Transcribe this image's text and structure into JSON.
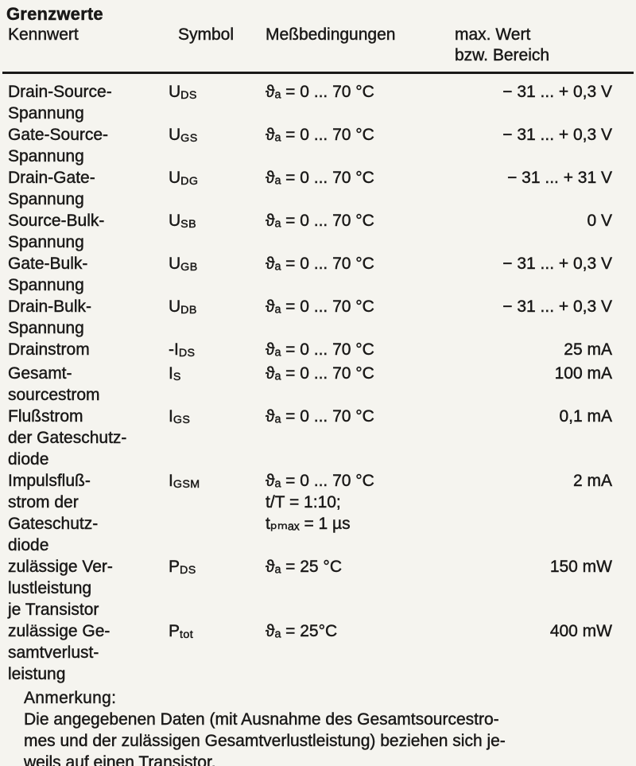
{
  "page": {
    "title": "Grenzwerte",
    "colors": {
      "paper": "#f5f4ef",
      "ink": "#1a1918"
    }
  },
  "table": {
    "headers": {
      "kennwert": "Kennwert",
      "symbol": "Symbol",
      "conditions": "Meßbedingungen",
      "max_value": "max. Wert\nbzw. Bereich"
    },
    "rows": [
      {
        "name": "Drain-Source-\nSpannung",
        "symbol_base": "U",
        "symbol_sub": "DS",
        "conditions": "ϑₐ = 0 ... 70 °C",
        "value": "− 31 ... + 0,3 V"
      },
      {
        "name": "Gate-Source-\nSpannung",
        "symbol_base": "U",
        "symbol_sub": "GS",
        "conditions": "ϑₐ = 0 ... 70 °C",
        "value": "− 31 ... + 0,3 V"
      },
      {
        "name": "Drain-Gate-\nSpannung",
        "symbol_base": "U",
        "symbol_sub": "DG",
        "conditions": "ϑₐ = 0 ... 70 °C",
        "value": "− 31 ... + 31 V"
      },
      {
        "name": "Source-Bulk-\nSpannung",
        "symbol_base": "U",
        "symbol_sub": "SB",
        "conditions": "ϑₐ = 0 ... 70 °C",
        "value": "0 V"
      },
      {
        "name": "Gate-Bulk-\nSpannung",
        "symbol_base": "U",
        "symbol_sub": "GB",
        "conditions": "ϑₐ = 0 ... 70 °C",
        "value": "− 31 ... + 0,3 V"
      },
      {
        "name": "Drain-Bulk-\nSpannung",
        "symbol_base": "U",
        "symbol_sub": "DB",
        "conditions": "ϑₐ = 0 ... 70 °C",
        "value": "− 31 ... + 0,3 V"
      },
      {
        "name": "Drainstrom",
        "symbol_base": "-I",
        "symbol_sub": "DS",
        "conditions": "ϑₐ = 0 ... 70 °C",
        "value": "25 mA"
      },
      {
        "name": "Gesamt-\nsourcestrom",
        "symbol_base": "I",
        "symbol_sub": "S",
        "conditions": "ϑₐ = 0 ... 70 °C",
        "value": "100 mA"
      },
      {
        "name": "Flußstrom\nder Gateschutz-\ndiode",
        "symbol_base": "I",
        "symbol_sub": "GS",
        "conditions": "ϑₐ = 0 ... 70 °C",
        "value": "0,1 mA"
      },
      {
        "name": "Impulsfluß-\nstrom der\nGateschutz-\ndiode",
        "symbol_base": "I",
        "symbol_sub": "GSM",
        "conditions": "ϑₐ = 0 ... 70 °C\nt/T = 1:10;\ntₚₘₐₓ = 1 µs",
        "value": "2 mA"
      },
      {
        "name": "zulässige Ver-\nlustleistung\nje Transistor",
        "symbol_base": "P",
        "symbol_sub": "DS",
        "conditions": "ϑₐ = 25 °C",
        "value": "150 mW"
      },
      {
        "name": "zulässige Ge-\nsamtverlust-\nleistung",
        "symbol_base": "P",
        "symbol_sub": "tot",
        "conditions": "ϑₐ = 25°C",
        "value": "400 mW"
      }
    ]
  },
  "note": {
    "heading": "Anmerkung:",
    "text": "Die angegebenen Daten (mit Ausnahme des Gesamtsourcestro-\nmes und der zulässigen Gesamtverlustleistung) beziehen sich je-\nweils auf einen Transistor."
  }
}
